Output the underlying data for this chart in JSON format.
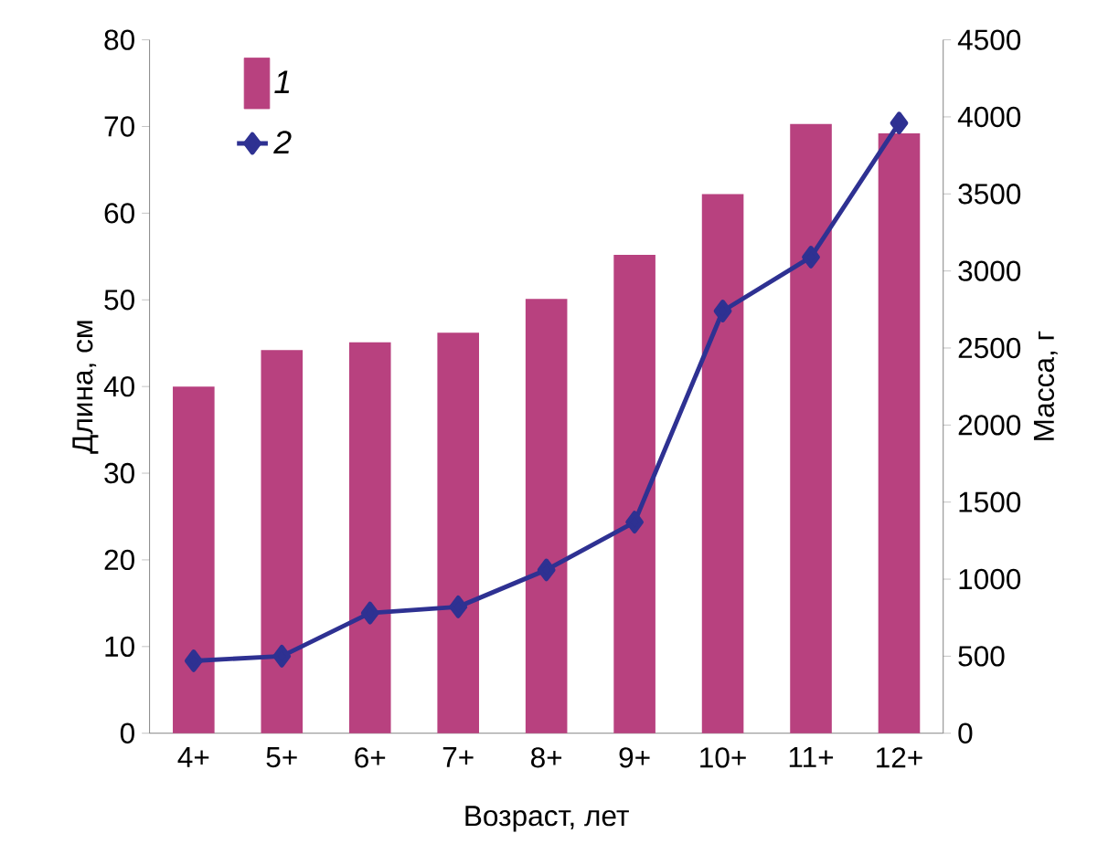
{
  "chart_data": {
    "type": "bar",
    "xlabel": "Возраст, лет",
    "ylabel": "Длина, см",
    "y2label": "Масса, г",
    "categories": [
      "4+",
      "5+",
      "6+",
      "7+",
      "8+",
      "9+",
      "10+",
      "11+",
      "12+"
    ],
    "ylim": [
      0,
      80
    ],
    "yticks": [
      0,
      10,
      20,
      30,
      40,
      50,
      60,
      70,
      80
    ],
    "y2lim": [
      0,
      4500
    ],
    "y2ticks": [
      0,
      500,
      1000,
      1500,
      2000,
      2500,
      3000,
      3500,
      4000,
      4500
    ],
    "legend": "top left",
    "marker": "diamond",
    "series": [
      {
        "name": "1",
        "color": "#b8417f",
        "values": [
          40,
          44.2,
          45.1,
          46.2,
          50.1,
          55.2,
          62.2,
          70.3,
          69.2
        ]
      },
      {
        "name": "2",
        "type": "line",
        "axis": "y2",
        "color": "#2e3192",
        "values": [
          470,
          500,
          780,
          820,
          1060,
          1370,
          2740,
          3090,
          3960
        ]
      }
    ]
  }
}
